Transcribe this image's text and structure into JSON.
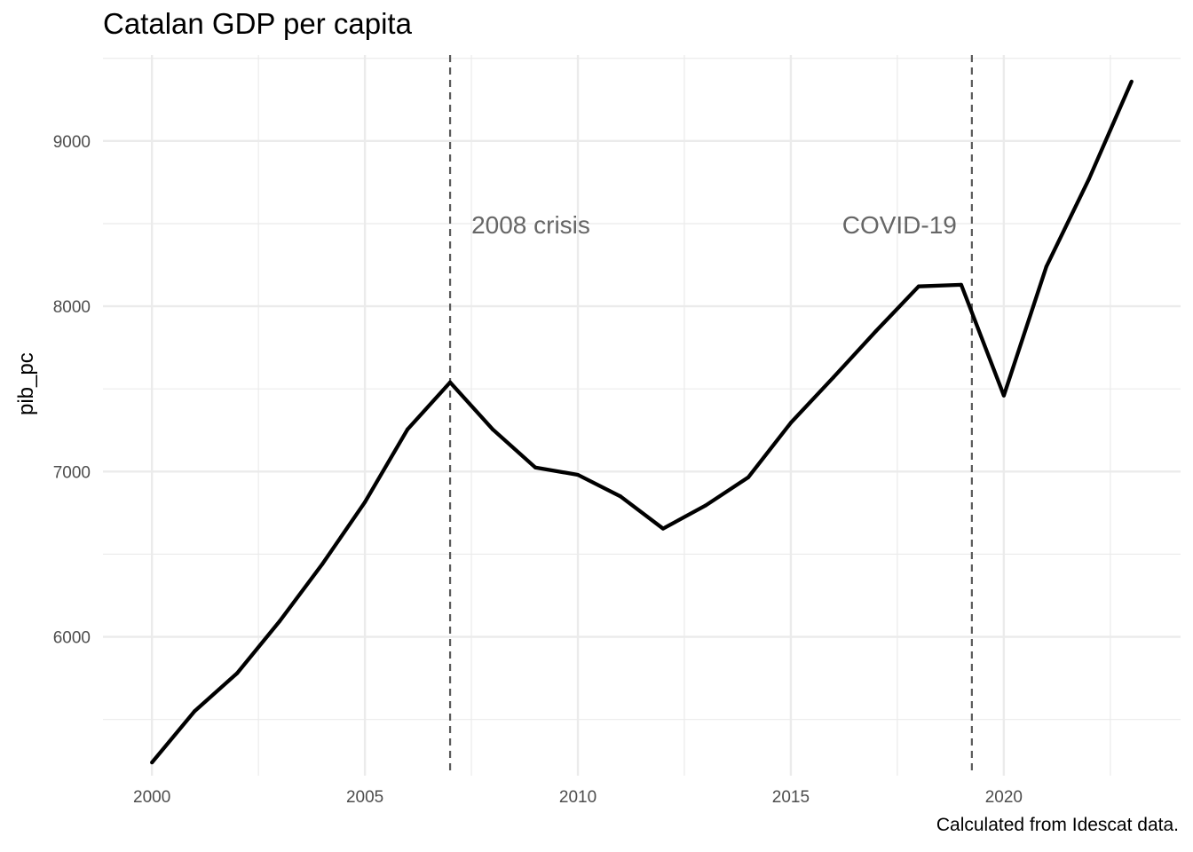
{
  "chart_data": {
    "type": "line",
    "title": "Catalan GDP per capita",
    "xlabel": "",
    "ylabel": "pib_pc",
    "caption": "Calculated from Idescat data.",
    "x": [
      2000,
      2001,
      2002,
      2003,
      2004,
      2005,
      2006,
      2007,
      2008,
      2009,
      2010,
      2011,
      2012,
      2013,
      2014,
      2015,
      2016,
      2017,
      2018,
      2019,
      2020,
      2021,
      2022,
      2023
    ],
    "series": [
      {
        "values": [
          5240,
          5550,
          5780,
          6095,
          6440,
          6815,
          7255,
          7540,
          7255,
          7025,
          6980,
          6850,
          6655,
          6795,
          6965,
          7295,
          7570,
          7850,
          8120,
          8130,
          7460,
          8240,
          8770,
          9360
        ],
        "color": "#000000"
      }
    ],
    "xlim": [
      1998.85,
      2024.15
    ],
    "ylim": [
      5160,
      9520
    ],
    "x_ticks": [
      2000,
      2005,
      2010,
      2015,
      2020
    ],
    "y_ticks": [
      6000,
      7000,
      8000,
      9000
    ],
    "grid": true,
    "legend": "none",
    "annotations": [
      {
        "x": 2007,
        "label": "2008 crisis",
        "label_y": 8500,
        "label_side": "right",
        "style": "dashed"
      },
      {
        "x": 2019.25,
        "label": "COVID-19",
        "label_y": 8500,
        "label_side": "left",
        "style": "dashed"
      }
    ]
  }
}
